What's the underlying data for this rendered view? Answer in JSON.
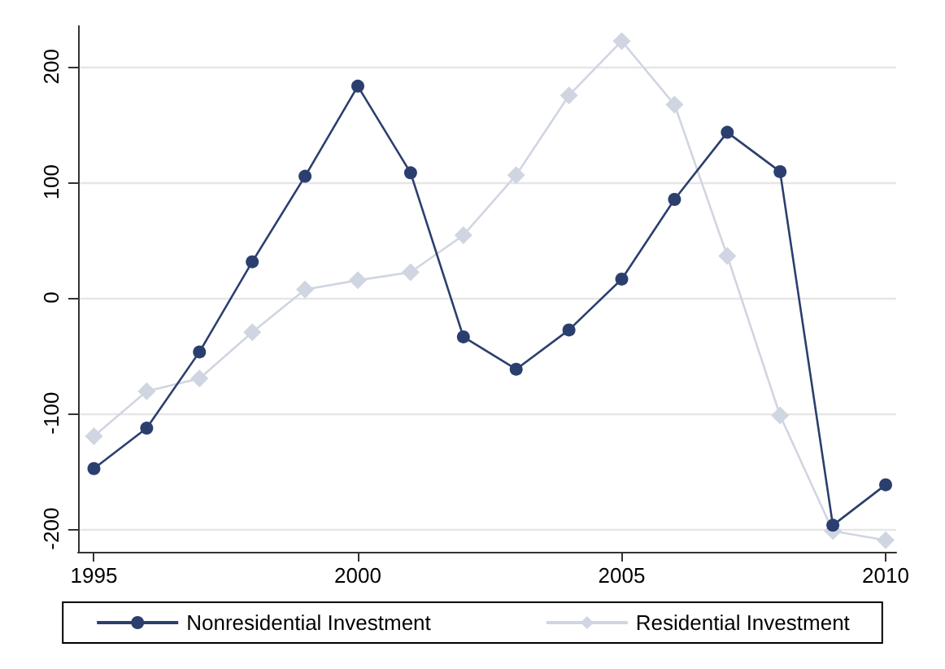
{
  "chart_data": {
    "type": "line",
    "x": [
      1995,
      1996,
      1997,
      1998,
      1999,
      2000,
      2001,
      2002,
      2003,
      2004,
      2005,
      2006,
      2007,
      2008,
      2009,
      2010
    ],
    "series": [
      {
        "name": "Nonresidential Investment",
        "color": "#2b3f6e",
        "marker": "circle",
        "values": [
          -148,
          -113,
          -47,
          31,
          105,
          183,
          108,
          -34,
          -62,
          -28,
          16,
          85,
          143,
          109,
          -197,
          -162
        ]
      },
      {
        "name": "Residential Investment",
        "color": "#d0d5e2",
        "marker": "diamond",
        "values": [
          -120,
          -81,
          -70,
          -30,
          7,
          15,
          22,
          54,
          106,
          175,
          222,
          167,
          36,
          -102,
          -202,
          -210
        ]
      }
    ],
    "xlim": [
      1994.7,
      2010.2
    ],
    "xticks": [
      1995,
      2000,
      2005,
      2010
    ],
    "ylim": [
      -220,
      235
    ],
    "yticks": [
      -200,
      -100,
      0,
      100,
      200
    ],
    "grid": "y",
    "legend": "bottom",
    "line_style": "solid"
  }
}
